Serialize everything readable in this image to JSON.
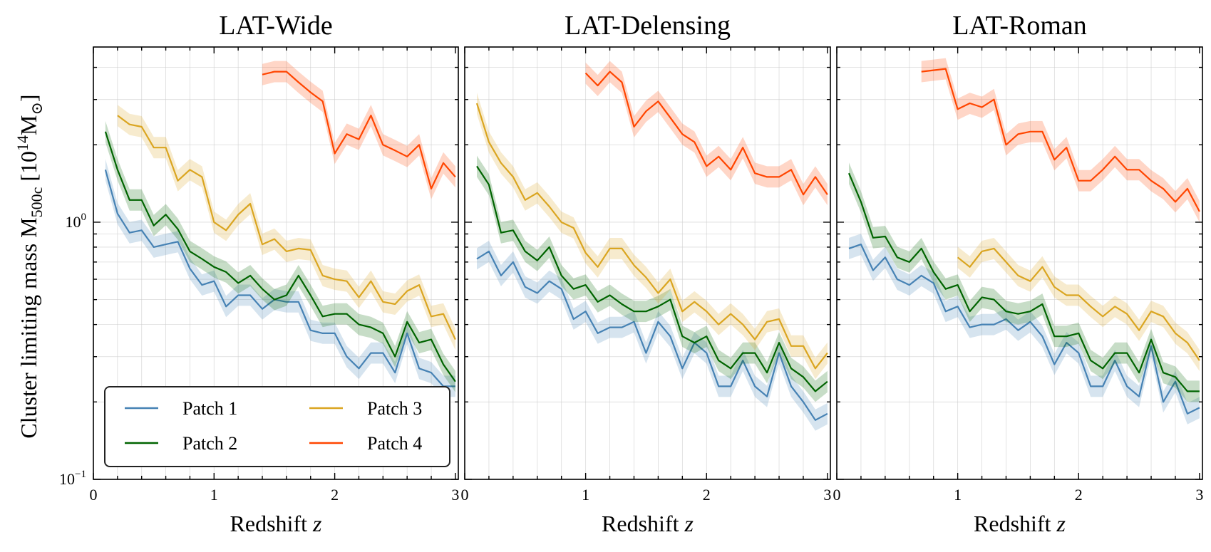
{
  "chart_data": {
    "type": "line",
    "ylabel": "Cluster limiting mass M",
    "ylabel_sub": "500c",
    "ylabel_unit_open": " [10",
    "ylabel_unit_exp": "14",
    "ylabel_unit_close": "M",
    "ylabel_unit_end": "]",
    "ylabel_sun_symbol": "⊙",
    "xlabel_text": "Redshift ",
    "xlabel_var": "z",
    "yscale": "log",
    "ylim": [
      0.1,
      4.8
    ],
    "xlim": [
      0,
      3
    ],
    "grid": true,
    "legend_location": "lower-left of first panel",
    "y_tick_labels": [
      {
        "value": 1.0,
        "base": "10",
        "exp": "0"
      },
      {
        "value": 0.1,
        "base": "10",
        "exp": "−1"
      }
    ],
    "x_ticks": [
      0,
      1,
      2,
      3
    ],
    "x_tick_labels": [
      "0",
      "1",
      "2",
      "3"
    ],
    "legend": [
      {
        "name": "Patch 1",
        "color": "#4682b4"
      },
      {
        "name": "Patch 3",
        "color": "#daa520"
      },
      {
        "name": "Patch 2",
        "color": "#006400"
      },
      {
        "name": "Patch 4",
        "color": "#ff4500"
      }
    ],
    "panels": [
      {
        "title": "LAT-Wide",
        "series": [
          {
            "name": "Patch 1",
            "color": "#4682b4",
            "x": [
              0.1,
              0.2,
              0.3,
              0.4,
              0.5,
              0.6,
              0.7,
              0.8,
              0.9,
              1.0,
              1.1,
              1.2,
              1.3,
              1.4,
              1.5,
              1.6,
              1.7,
              1.8,
              1.9,
              2.0,
              2.1,
              2.2,
              2.3,
              2.4,
              2.5,
              2.6,
              2.7,
              2.8,
              2.9,
              3.0
            ],
            "y": [
              1.6,
              1.08,
              0.91,
              0.93,
              0.8,
              0.82,
              0.84,
              0.66,
              0.57,
              0.59,
              0.47,
              0.52,
              0.52,
              0.46,
              0.5,
              0.49,
              0.49,
              0.38,
              0.37,
              0.37,
              0.3,
              0.27,
              0.31,
              0.31,
              0.26,
              0.37,
              0.27,
              0.26,
              0.23,
              0.23
            ]
          },
          {
            "name": "Patch 2",
            "color": "#006400",
            "x": [
              0.1,
              0.2,
              0.3,
              0.4,
              0.5,
              0.6,
              0.7,
              0.8,
              0.9,
              1.0,
              1.1,
              1.2,
              1.3,
              1.4,
              1.5,
              1.6,
              1.7,
              1.8,
              1.9,
              2.0,
              2.1,
              2.2,
              2.3,
              2.4,
              2.5,
              2.6,
              2.7,
              2.8,
              2.9,
              3.0
            ],
            "y": [
              2.25,
              1.6,
              1.22,
              1.22,
              0.97,
              1.07,
              0.94,
              0.77,
              0.72,
              0.67,
              0.64,
              0.58,
              0.62,
              0.55,
              0.5,
              0.52,
              0.62,
              0.52,
              0.43,
              0.44,
              0.44,
              0.4,
              0.39,
              0.37,
              0.3,
              0.41,
              0.34,
              0.35,
              0.28,
              0.24
            ]
          },
          {
            "name": "Patch 3",
            "color": "#daa520",
            "x": [
              0.2,
              0.3,
              0.4,
              0.5,
              0.6,
              0.7,
              0.8,
              0.9,
              1.0,
              1.1,
              1.2,
              1.3,
              1.4,
              1.5,
              1.6,
              1.7,
              1.8,
              1.9,
              2.0,
              2.1,
              2.2,
              2.3,
              2.4,
              2.5,
              2.6,
              2.7,
              2.8,
              2.9,
              3.0
            ],
            "y": [
              2.6,
              2.4,
              2.35,
              1.95,
              1.95,
              1.45,
              1.6,
              1.5,
              1.0,
              0.93,
              1.07,
              1.18,
              0.82,
              0.86,
              0.77,
              0.79,
              0.78,
              0.62,
              0.6,
              0.59,
              0.51,
              0.59,
              0.49,
              0.48,
              0.54,
              0.57,
              0.43,
              0.44,
              0.35
            ]
          },
          {
            "name": "Patch 4",
            "color": "#ff4500",
            "x": [
              1.4,
              1.5,
              1.6,
              1.7,
              1.8,
              1.9,
              2.0,
              2.1,
              2.2,
              2.3,
              2.4,
              2.5,
              2.6,
              2.7,
              2.8,
              2.9,
              3.0
            ],
            "y": [
              3.75,
              3.85,
              3.85,
              3.5,
              3.2,
              2.95,
              1.85,
              2.2,
              2.1,
              2.6,
              2.0,
              1.9,
              1.8,
              2.0,
              1.35,
              1.7,
              1.5
            ]
          }
        ]
      },
      {
        "title": "LAT-Delensing",
        "series": [
          {
            "name": "Patch 1",
            "color": "#4682b4",
            "x": [
              0.1,
              0.2,
              0.3,
              0.4,
              0.5,
              0.6,
              0.7,
              0.8,
              0.9,
              1.0,
              1.1,
              1.2,
              1.3,
              1.4,
              1.5,
              1.6,
              1.7,
              1.8,
              1.9,
              2.0,
              2.1,
              2.2,
              2.3,
              2.4,
              2.5,
              2.6,
              2.7,
              2.8,
              2.9,
              3.0
            ],
            "y": [
              0.72,
              0.77,
              0.62,
              0.7,
              0.56,
              0.53,
              0.59,
              0.55,
              0.42,
              0.45,
              0.37,
              0.39,
              0.39,
              0.41,
              0.31,
              0.41,
              0.36,
              0.27,
              0.34,
              0.31,
              0.23,
              0.23,
              0.29,
              0.23,
              0.21,
              0.31,
              0.23,
              0.2,
              0.17,
              0.18
            ]
          },
          {
            "name": "Patch 2",
            "color": "#006400",
            "x": [
              0.1,
              0.2,
              0.3,
              0.4,
              0.5,
              0.6,
              0.7,
              0.8,
              0.9,
              1.0,
              1.1,
              1.2,
              1.3,
              1.4,
              1.5,
              1.6,
              1.7,
              1.8,
              1.9,
              2.0,
              2.1,
              2.2,
              2.3,
              2.4,
              2.5,
              2.6,
              2.7,
              2.8,
              2.9,
              3.0
            ],
            "y": [
              1.65,
              1.4,
              0.91,
              0.93,
              0.77,
              0.71,
              0.8,
              0.62,
              0.55,
              0.57,
              0.49,
              0.52,
              0.48,
              0.45,
              0.45,
              0.47,
              0.5,
              0.36,
              0.34,
              0.36,
              0.29,
              0.27,
              0.31,
              0.31,
              0.26,
              0.34,
              0.27,
              0.25,
              0.22,
              0.24
            ]
          },
          {
            "name": "Patch 3",
            "color": "#daa520",
            "x": [
              0.1,
              0.2,
              0.3,
              0.4,
              0.5,
              0.6,
              0.7,
              0.8,
              0.9,
              1.0,
              1.1,
              1.2,
              1.3,
              1.4,
              1.5,
              1.6,
              1.7,
              1.8,
              1.9,
              2.0,
              2.1,
              2.2,
              2.3,
              2.4,
              2.5,
              2.6,
              2.7,
              2.8,
              2.9,
              3.0
            ],
            "y": [
              2.9,
              2.05,
              1.7,
              1.5,
              1.22,
              1.3,
              1.15,
              1.0,
              0.95,
              0.76,
              0.67,
              0.79,
              0.79,
              0.68,
              0.61,
              0.53,
              0.6,
              0.45,
              0.49,
              0.45,
              0.4,
              0.44,
              0.4,
              0.35,
              0.41,
              0.42,
              0.33,
              0.33,
              0.27,
              0.31
            ]
          },
          {
            "name": "Patch 4",
            "color": "#ff4500",
            "x": [
              1.0,
              1.1,
              1.2,
              1.3,
              1.4,
              1.5,
              1.6,
              1.7,
              1.8,
              1.9,
              2.0,
              2.1,
              2.2,
              2.3,
              2.4,
              2.5,
              2.6,
              2.7,
              2.8,
              2.9,
              3.0
            ],
            "y": [
              3.8,
              3.4,
              3.85,
              3.5,
              2.35,
              2.7,
              2.95,
              2.55,
              2.2,
              2.05,
              1.65,
              1.8,
              1.6,
              1.95,
              1.55,
              1.5,
              1.5,
              1.6,
              1.28,
              1.5,
              1.28
            ]
          }
        ]
      },
      {
        "title": "LAT-Roman",
        "series": [
          {
            "name": "Patch 1",
            "color": "#4682b4",
            "x": [
              0.1,
              0.2,
              0.3,
              0.4,
              0.5,
              0.6,
              0.7,
              0.8,
              0.9,
              1.0,
              1.1,
              1.2,
              1.3,
              1.4,
              1.5,
              1.6,
              1.7,
              1.8,
              1.9,
              2.0,
              2.1,
              2.2,
              2.3,
              2.4,
              2.5,
              2.6,
              2.7,
              2.8,
              2.9,
              3.0
            ],
            "y": [
              0.79,
              0.82,
              0.65,
              0.73,
              0.6,
              0.57,
              0.62,
              0.58,
              0.45,
              0.47,
              0.39,
              0.4,
              0.4,
              0.42,
              0.38,
              0.41,
              0.36,
              0.28,
              0.34,
              0.31,
              0.23,
              0.23,
              0.29,
              0.23,
              0.21,
              0.33,
              0.2,
              0.24,
              0.18,
              0.19
            ]
          },
          {
            "name": "Patch 2",
            "color": "#006400",
            "x": [
              0.1,
              0.2,
              0.3,
              0.4,
              0.5,
              0.6,
              0.7,
              0.8,
              0.9,
              1.0,
              1.1,
              1.2,
              1.3,
              1.4,
              1.5,
              1.6,
              1.7,
              1.8,
              1.9,
              2.0,
              2.1,
              2.2,
              2.3,
              2.4,
              2.5,
              2.6,
              2.7,
              2.8,
              2.9,
              3.0
            ],
            "y": [
              1.55,
              1.2,
              0.87,
              0.88,
              0.73,
              0.7,
              0.79,
              0.64,
              0.55,
              0.57,
              0.45,
              0.51,
              0.5,
              0.45,
              0.44,
              0.45,
              0.48,
              0.36,
              0.36,
              0.37,
              0.29,
              0.27,
              0.31,
              0.31,
              0.26,
              0.35,
              0.26,
              0.25,
              0.22,
              0.22
            ]
          },
          {
            "name": "Patch 3",
            "color": "#daa520",
            "x": [
              1.0,
              1.1,
              1.2,
              1.3,
              1.4,
              1.5,
              1.6,
              1.7,
              1.8,
              1.9,
              2.0,
              2.1,
              2.2,
              2.3,
              2.4,
              2.5,
              2.6,
              2.7,
              2.8,
              2.9,
              3.0
            ],
            "y": [
              0.73,
              0.67,
              0.77,
              0.79,
              0.7,
              0.62,
              0.59,
              0.67,
              0.56,
              0.52,
              0.52,
              0.47,
              0.43,
              0.47,
              0.44,
              0.38,
              0.45,
              0.43,
              0.37,
              0.34,
              0.29
            ]
          },
          {
            "name": "Patch 4",
            "color": "#ff4500",
            "x": [
              0.7,
              0.8,
              0.9,
              1.0,
              1.1,
              1.2,
              1.3,
              1.4,
              1.5,
              1.6,
              1.7,
              1.8,
              1.9,
              2.0,
              2.1,
              2.2,
              2.3,
              2.4,
              2.5,
              2.6,
              2.7,
              2.8,
              2.9,
              3.0
            ],
            "y": [
              3.85,
              3.9,
              3.95,
              2.75,
              2.9,
              2.8,
              3.0,
              2.0,
              2.2,
              2.25,
              2.25,
              1.75,
              1.95,
              1.45,
              1.45,
              1.6,
              1.8,
              1.6,
              1.6,
              1.45,
              1.35,
              1.2,
              1.35,
              1.1
            ]
          }
        ]
      }
    ]
  }
}
